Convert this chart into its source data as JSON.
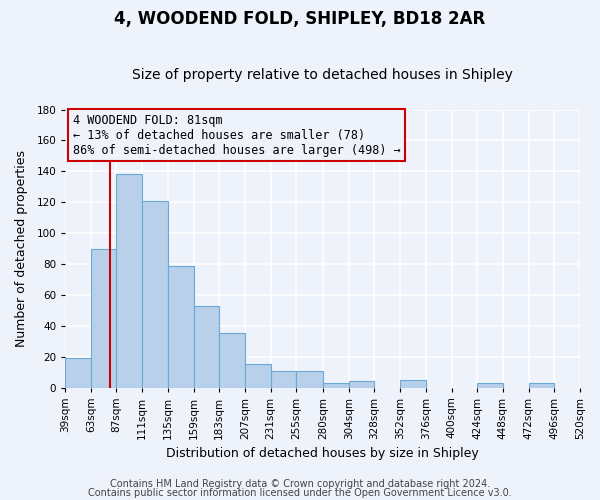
{
  "title": "4, WOODEND FOLD, SHIPLEY, BD18 2AR",
  "subtitle": "Size of property relative to detached houses in Shipley",
  "xlabel": "Distribution of detached houses by size in Shipley",
  "ylabel": "Number of detached properties",
  "bin_edges": [
    39,
    63,
    87,
    111,
    135,
    159,
    183,
    207,
    231,
    255,
    280,
    304,
    328,
    352,
    376,
    400,
    424,
    448,
    472,
    496,
    520
  ],
  "bar_heights": [
    19,
    90,
    138,
    121,
    79,
    53,
    35,
    15,
    11,
    11,
    3,
    4,
    0,
    5,
    0,
    0,
    3,
    0,
    3,
    0
  ],
  "tick_labels": [
    "39sqm",
    "63sqm",
    "87sqm",
    "111sqm",
    "135sqm",
    "159sqm",
    "183sqm",
    "207sqm",
    "231sqm",
    "255sqm",
    "280sqm",
    "304sqm",
    "328sqm",
    "352sqm",
    "376sqm",
    "400sqm",
    "424sqm",
    "448sqm",
    "472sqm",
    "496sqm",
    "520sqm"
  ],
  "bar_color": "#b8d0ea",
  "bar_edge_color": "#6aaad4",
  "vline_x": 81,
  "vline_color": "#cc0000",
  "ylim": [
    0,
    180
  ],
  "yticks": [
    0,
    20,
    40,
    60,
    80,
    100,
    120,
    140,
    160,
    180
  ],
  "annotation_text": "4 WOODEND FOLD: 81sqm\n← 13% of detached houses are smaller (78)\n86% of semi-detached houses are larger (498) →",
  "box_edge_color": "#cc0000",
  "footer_line1": "Contains HM Land Registry data © Crown copyright and database right 2024.",
  "footer_line2": "Contains public sector information licensed under the Open Government Licence v3.0.",
  "background_color": "#eef2fb",
  "grid_color": "#ffffff",
  "title_fontsize": 12,
  "subtitle_fontsize": 10,
  "axis_label_fontsize": 9,
  "tick_fontsize": 7.5,
  "annotation_fontsize": 8.5,
  "footer_fontsize": 7
}
